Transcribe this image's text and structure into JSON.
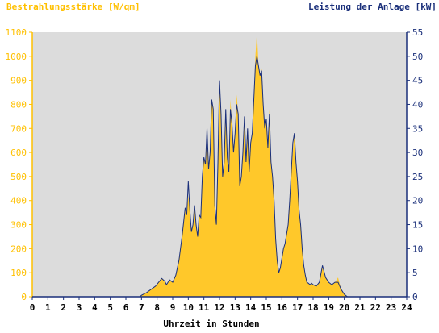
{
  "chart_data": {
    "type": "area",
    "left_axis_title": "Bestrahlungsstärke [W/qm]",
    "right_axis_title": "Leistung der Anlage [kW]",
    "xlabel": "Uhrzeit in Stunden",
    "x_ticks": [
      "0",
      "1",
      "2",
      "3",
      "4",
      "5",
      "6",
      "7",
      "8",
      "9",
      "10",
      "11",
      "12",
      "13",
      "14",
      "15",
      "16",
      "17",
      "18",
      "19",
      "20",
      "21",
      "22",
      "23",
      "24"
    ],
    "left_ticks": [
      "0",
      "100",
      "200",
      "300",
      "400",
      "500",
      "600",
      "700",
      "800",
      "900",
      "1000",
      "1100"
    ],
    "right_ticks": [
      "0",
      "5",
      "10",
      "15",
      "20",
      "25",
      "30",
      "35",
      "40",
      "45",
      "50",
      "55"
    ],
    "xlim": [
      0,
      24
    ],
    "ylim_left": [
      0,
      1100
    ],
    "ylim_right": [
      0,
      55
    ],
    "colors": {
      "plot_background": "#dcdcdc",
      "irradiance_fill": "#ffc82a",
      "power_line": "#1a2f7a",
      "left_axis": "#ffc000",
      "right_axis": "#1a2f7a"
    },
    "series": [
      {
        "name": "Bestrahlungsstärke [W/qm]",
        "axis": "left",
        "style": "area",
        "x": [
          0,
          6.9,
          7.0,
          7.3,
          7.6,
          7.9,
          8.1,
          8.3,
          8.5,
          8.6,
          8.8,
          9.0,
          9.2,
          9.4,
          9.6,
          9.8,
          9.9,
          10.0,
          10.1,
          10.2,
          10.3,
          10.4,
          10.5,
          10.6,
          10.7,
          10.8,
          10.9,
          11.0,
          11.1,
          11.2,
          11.3,
          11.4,
          11.5,
          11.6,
          11.7,
          11.8,
          11.9,
          12.0,
          12.1,
          12.2,
          12.3,
          12.4,
          12.5,
          12.6,
          12.7,
          12.8,
          12.9,
          13.0,
          13.1,
          13.2,
          13.3,
          13.4,
          13.5,
          13.6,
          13.7,
          13.8,
          13.9,
          14.0,
          14.1,
          14.2,
          14.3,
          14.4,
          14.5,
          14.6,
          14.7,
          14.8,
          14.9,
          15.0,
          15.1,
          15.2,
          15.3,
          15.4,
          15.5,
          15.6,
          15.7,
          15.8,
          15.9,
          16.0,
          16.1,
          16.2,
          16.3,
          16.4,
          16.5,
          16.6,
          16.7,
          16.8,
          16.9,
          17.0,
          17.1,
          17.2,
          17.3,
          17.4,
          17.5,
          17.6,
          17.7,
          17.8,
          17.9,
          18.0,
          18.2,
          18.4,
          18.6,
          18.8,
          19.0,
          19.2,
          19.4,
          19.6,
          19.8,
          20.0,
          20.2,
          24
        ],
        "values": [
          0,
          0,
          5,
          15,
          30,
          45,
          60,
          75,
          65,
          50,
          70,
          60,
          90,
          150,
          250,
          360,
          340,
          420,
          350,
          270,
          300,
          380,
          300,
          250,
          340,
          330,
          500,
          580,
          550,
          700,
          530,
          600,
          820,
          780,
          380,
          300,
          560,
          900,
          760,
          500,
          560,
          780,
          580,
          520,
          820,
          720,
          600,
          680,
          840,
          760,
          460,
          500,
          600,
          750,
          560,
          700,
          520,
          640,
          680,
          820,
          1000,
          1100,
          960,
          920,
          950,
          800,
          700,
          740,
          620,
          780,
          560,
          500,
          400,
          240,
          150,
          100,
          120,
          160,
          200,
          220,
          260,
          300,
          400,
          520,
          600,
          680,
          560,
          480,
          360,
          300,
          200,
          130,
          90,
          60,
          55,
          50,
          55,
          50,
          45,
          60,
          120,
          80,
          60,
          50,
          60,
          80,
          30,
          10,
          0,
          0
        ]
      },
      {
        "name": "Leistung der Anlage [kW]",
        "axis": "right",
        "style": "line",
        "x": [
          0,
          6.9,
          7.0,
          7.3,
          7.6,
          7.9,
          8.1,
          8.3,
          8.5,
          8.6,
          8.8,
          9.0,
          9.2,
          9.4,
          9.6,
          9.8,
          9.9,
          10.0,
          10.1,
          10.2,
          10.3,
          10.4,
          10.5,
          10.6,
          10.7,
          10.8,
          10.9,
          11.0,
          11.1,
          11.2,
          11.3,
          11.4,
          11.5,
          11.6,
          11.7,
          11.8,
          11.9,
          12.0,
          12.1,
          12.2,
          12.3,
          12.4,
          12.5,
          12.6,
          12.7,
          12.8,
          12.9,
          13.0,
          13.1,
          13.2,
          13.3,
          13.4,
          13.5,
          13.6,
          13.7,
          13.8,
          13.9,
          14.0,
          14.1,
          14.2,
          14.3,
          14.4,
          14.5,
          14.6,
          14.7,
          14.8,
          14.9,
          15.0,
          15.1,
          15.2,
          15.3,
          15.4,
          15.5,
          15.6,
          15.7,
          15.8,
          15.9,
          16.0,
          16.1,
          16.2,
          16.3,
          16.4,
          16.5,
          16.6,
          16.7,
          16.8,
          16.9,
          17.0,
          17.1,
          17.2,
          17.3,
          17.4,
          17.5,
          17.6,
          17.7,
          17.8,
          17.9,
          18.0,
          18.2,
          18.4,
          18.6,
          18.8,
          19.0,
          19.2,
          19.4,
          19.6,
          19.8,
          20.0,
          20.2,
          24
        ],
        "values": [
          0,
          0,
          0.3,
          0.8,
          1.5,
          2.2,
          3.0,
          3.8,
          3.2,
          2.5,
          3.5,
          3.0,
          4.5,
          7.5,
          12.5,
          18.5,
          17.0,
          24.0,
          18.0,
          13.5,
          15.0,
          19.0,
          15.0,
          12.5,
          17.0,
          16.5,
          25.0,
          29.0,
          27.5,
          35.0,
          26.5,
          30.0,
          41.0,
          39.0,
          19.0,
          15.0,
          28.0,
          45.0,
          38.0,
          25.0,
          28.0,
          39.0,
          29.0,
          26.0,
          39.0,
          36.0,
          30.0,
          34.0,
          40.0,
          38.0,
          23.0,
          25.0,
          30.0,
          37.5,
          28.0,
          35.0,
          26.0,
          32.0,
          34.0,
          41.0,
          48.0,
          50.0,
          48.0,
          46.0,
          47.0,
          40.0,
          35.0,
          37.0,
          31.0,
          38.0,
          28.0,
          25.0,
          20.0,
          12.0,
          7.5,
          5.0,
          6.0,
          8.0,
          10.0,
          11.0,
          13.0,
          15.0,
          20.0,
          26.0,
          32.0,
          34.0,
          28.0,
          24.0,
          18.0,
          15.0,
          10.0,
          6.5,
          4.5,
          3.0,
          2.8,
          2.5,
          2.8,
          2.5,
          2.2,
          3.0,
          6.5,
          4.0,
          3.0,
          2.5,
          3.0,
          3.0,
          1.5,
          0.5,
          0,
          0
        ]
      }
    ]
  }
}
